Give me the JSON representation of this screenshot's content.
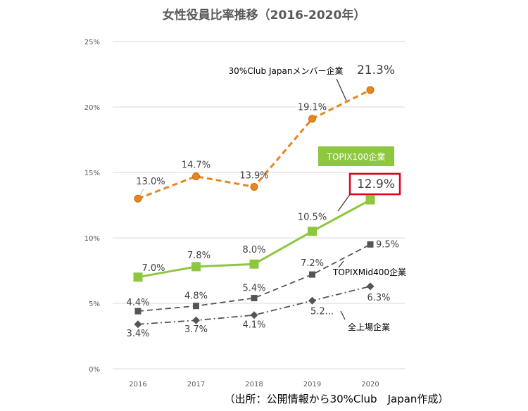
{
  "chart_data": {
    "type": "line",
    "title": "女性役員比率推移（2016-2020年）",
    "x": [
      "2016",
      "2017",
      "2018",
      "2019",
      "2020"
    ],
    "y_ticks": [
      "0%",
      "5%",
      "10%",
      "15%",
      "20%",
      "25%"
    ],
    "ylim": [
      0,
      25
    ],
    "grid": true,
    "series": [
      {
        "name": "30%Club Japanメンバー企業",
        "values": [
          13.0,
          14.7,
          13.9,
          19.1,
          21.3
        ],
        "labels": [
          "13.0%",
          "14.7%",
          "13.9%",
          "19.1%",
          "21.3%"
        ],
        "color": "#E8861E",
        "style": "dashed",
        "marker": "circle"
      },
      {
        "name": "TOPIX100企業",
        "values": [
          7.0,
          7.8,
          8.0,
          10.5,
          12.9
        ],
        "labels": [
          "7.0%",
          "7.8%",
          "8.0%",
          "10.5%",
          "12.9%"
        ],
        "color": "#8DC63F",
        "style": "solid",
        "marker": "square"
      },
      {
        "name": "TOPIXMid400企業",
        "values": [
          4.4,
          4.8,
          5.4,
          7.2,
          9.5
        ],
        "labels": [
          "4.4%",
          "4.8%",
          "5.4%",
          "7.2%",
          "9.5%"
        ],
        "color": "#555555",
        "style": "dashed",
        "marker": "square"
      },
      {
        "name": "全上場企業",
        "values": [
          3.4,
          3.7,
          4.1,
          5.2,
          6.3
        ],
        "labels": [
          "3.4%",
          "3.7%",
          "4.1%",
          "5.2...",
          "6.3%"
        ],
        "color": "#555555",
        "style": "dashdot",
        "marker": "diamond"
      }
    ],
    "highlight_color": "#E0001B",
    "source": "（出所：公開情報から30%Club　Japan作成）"
  }
}
